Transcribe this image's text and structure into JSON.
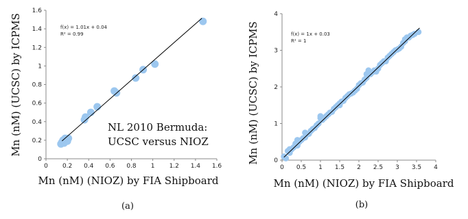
{
  "chart_data": [
    {
      "type": "scatter",
      "panel_label": "(a)",
      "xlabel": "Mn (nM)  (NIOZ) by FIA Shipboard",
      "ylabel": "Mn (nM)  (UCSC) by ICPMS",
      "xlim": [
        0,
        1.6
      ],
      "ylim": [
        0,
        1.6
      ],
      "xticks": [
        "0",
        "0.2",
        "0.4",
        "0.6",
        "0.8",
        "1",
        "1.2",
        "1.4",
        "1.6"
      ],
      "yticks": [
        "0",
        "0.2",
        "0.4",
        "0.6",
        "0.8",
        "1",
        "1.2",
        "1.4",
        "1.6"
      ],
      "grid": false,
      "trendline": {
        "slope": 1.01,
        "intercept": 0.04,
        "x_range": [
          0.15,
          1.46
        ]
      },
      "equation_text": "f(x) = 1.01x + 0.04",
      "r2_text": "R² = 0.99",
      "annotation": [
        "NL 2010 Bermuda:",
        "UCSC versus NIOZ"
      ],
      "x": [
        0.14,
        0.15,
        0.16,
        0.17,
        0.18,
        0.19,
        0.2,
        0.21,
        0.36,
        0.37,
        0.42,
        0.48,
        0.64,
        0.66,
        0.84,
        0.91,
        1.02,
        1.47
      ],
      "y": [
        0.16,
        0.18,
        0.2,
        0.17,
        0.22,
        0.21,
        0.19,
        0.22,
        0.42,
        0.45,
        0.5,
        0.56,
        0.73,
        0.71,
        0.87,
        0.96,
        1.02,
        1.48
      ]
    },
    {
      "type": "scatter",
      "panel_label": "(b)",
      "xlabel": "Mn (nM)  (NIOZ) by FIA Shipboard",
      "ylabel": "Mn (nM)  (UCSC) by ICPMS",
      "xlim": [
        0,
        4
      ],
      "ylim": [
        0,
        4
      ],
      "xticks": [
        "0",
        "0.5",
        "1",
        "1.5",
        "2",
        "2.5",
        "3",
        "3.5",
        "4"
      ],
      "yticks": [
        "0",
        "1",
        "2",
        "3",
        "4"
      ],
      "grid": false,
      "trendline": {
        "slope": 1,
        "intercept": 0.03,
        "x_range": [
          0.05,
          3.58
        ]
      },
      "equation_text": "f(x) = 1x + 0.03",
      "r2_text": "R² = 1",
      "x": [
        0.05,
        0.1,
        0.15,
        0.2,
        0.25,
        0.3,
        0.35,
        0.4,
        0.45,
        0.5,
        0.55,
        0.6,
        0.65,
        0.7,
        0.75,
        0.8,
        0.85,
        0.9,
        0.95,
        1.0,
        1.05,
        1.1,
        1.15,
        1.2,
        1.25,
        1.3,
        1.35,
        1.4,
        1.45,
        1.5,
        1.55,
        1.6,
        1.65,
        1.7,
        1.75,
        1.8,
        1.85,
        1.9,
        1.95,
        2.0,
        2.05,
        2.1,
        2.15,
        2.2,
        2.25,
        2.3,
        2.35,
        2.4,
        2.45,
        2.5,
        2.55,
        2.6,
        2.65,
        2.7,
        2.75,
        2.8,
        2.85,
        2.9,
        2.95,
        3.0,
        3.05,
        3.1,
        3.15,
        3.2,
        3.25,
        3.3,
        3.35,
        3.4,
        3.45,
        3.55,
        0.2,
        0.4,
        0.6,
        1.0,
        1.5,
        2.2,
        3.2
      ],
      "y": [
        0.1,
        0.05,
        0.25,
        0.2,
        0.3,
        0.35,
        0.45,
        0.4,
        0.5,
        0.55,
        0.6,
        0.62,
        0.7,
        0.72,
        0.8,
        0.85,
        0.88,
        0.95,
        1.0,
        1.2,
        1.1,
        1.15,
        1.2,
        1.25,
        1.3,
        1.32,
        1.4,
        1.45,
        1.5,
        1.55,
        1.6,
        1.62,
        1.7,
        1.75,
        1.8,
        1.82,
        1.85,
        1.9,
        1.95,
        2.05,
        2.1,
        2.12,
        2.2,
        2.25,
        2.45,
        2.35,
        2.4,
        2.45,
        2.42,
        2.5,
        2.6,
        2.65,
        2.7,
        2.7,
        2.8,
        2.85,
        2.9,
        2.95,
        3.0,
        3.02,
        3.05,
        3.1,
        3.2,
        3.3,
        3.35,
        3.35,
        3.4,
        3.42,
        3.45,
        3.5,
        0.3,
        0.55,
        0.75,
        1.15,
        1.5,
        2.35,
        3.25
      ]
    }
  ]
}
